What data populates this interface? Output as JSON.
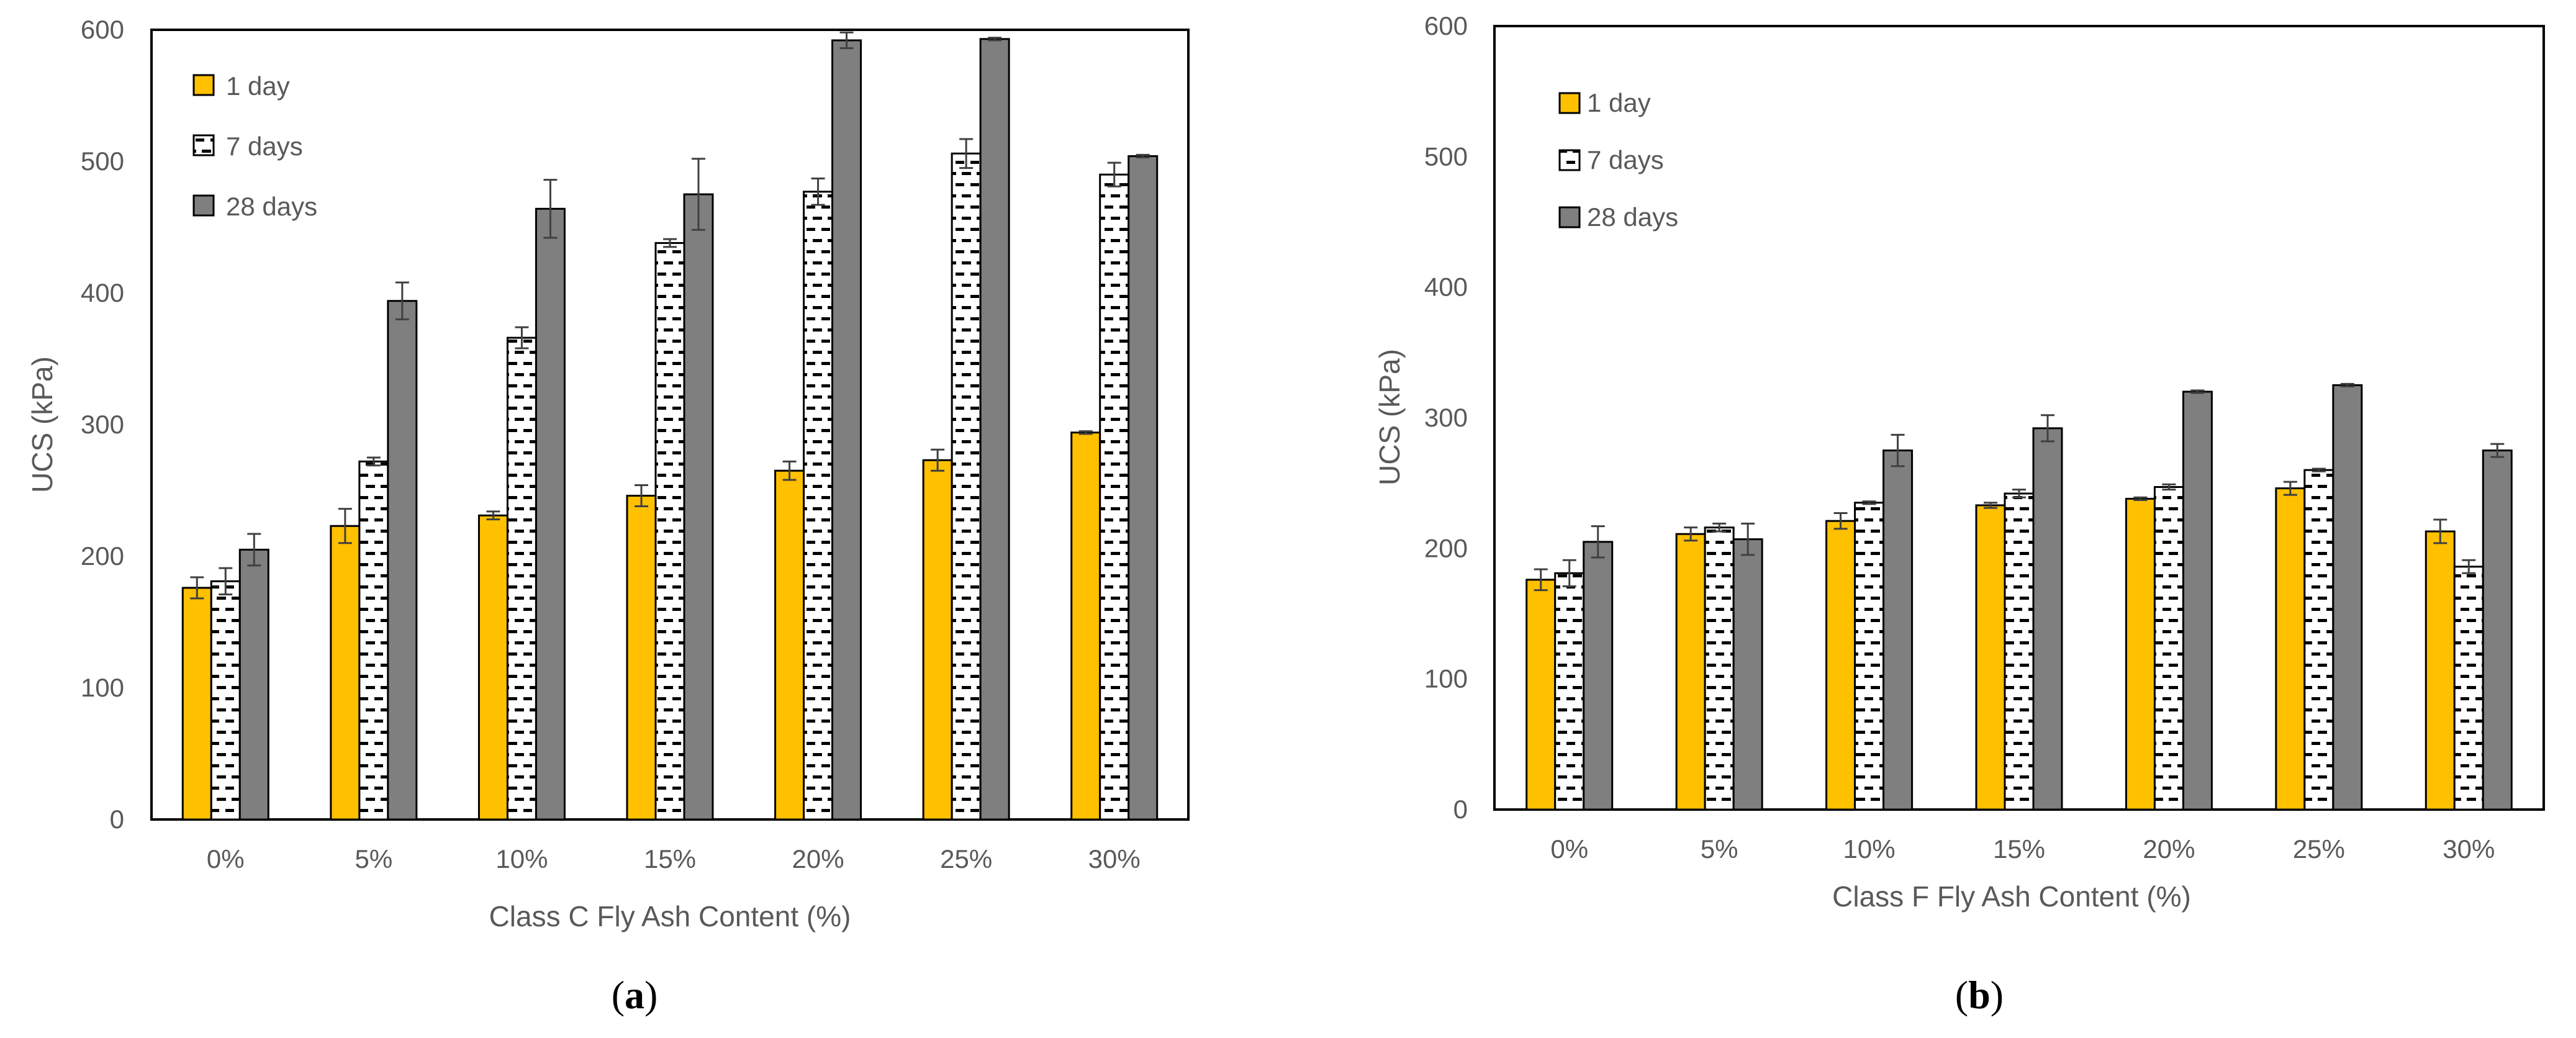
{
  "chart_data": [
    {
      "type": "bar",
      "panel_label": "a",
      "title": "",
      "xlabel": "Class C Fly Ash Content (%)",
      "ylabel": "UCS (kPa)",
      "ylim": [
        0,
        600
      ],
      "yticks": [
        0,
        100,
        200,
        300,
        400,
        500,
        600
      ],
      "grid": false,
      "legend_position": "top-left",
      "categories": [
        "0%",
        "5%",
        "10%",
        "15%",
        "20%",
        "25%",
        "30%"
      ],
      "series": [
        {
          "name": "1 day",
          "pattern": "solid-yellow",
          "values": [
            176,
            223,
            231,
            246,
            265,
            273,
            294
          ],
          "errors": [
            8,
            13,
            3,
            8,
            7,
            8,
            1
          ]
        },
        {
          "name": "7 days",
          "pattern": "dashed-white",
          "values": [
            181,
            272,
            366,
            438,
            477,
            506,
            490
          ],
          "errors": [
            10,
            3,
            8,
            3,
            10,
            11,
            9
          ]
        },
        {
          "name": "28 days",
          "pattern": "solid-gray",
          "values": [
            205,
            394,
            464,
            475,
            592,
            593,
            504
          ],
          "errors": [
            12,
            14,
            22,
            27,
            6,
            1,
            1
          ]
        }
      ]
    },
    {
      "type": "bar",
      "panel_label": "b",
      "title": "",
      "xlabel": "Class F Fly Ash Content (%)",
      "ylabel": "UCS (kPa)",
      "ylim": [
        0,
        600
      ],
      "yticks": [
        0,
        100,
        200,
        300,
        400,
        500,
        600
      ],
      "grid": false,
      "legend_position": "top-left",
      "categories": [
        "0%",
        "5%",
        "10%",
        "15%",
        "20%",
        "25%",
        "30%"
      ],
      "series": [
        {
          "name": "1 day",
          "pattern": "solid-yellow",
          "values": [
            176,
            211,
            221,
            233,
            238,
            246,
            213
          ],
          "errors": [
            8,
            5,
            6,
            2,
            1,
            5,
            9
          ]
        },
        {
          "name": "7 days",
          "pattern": "dashed-white",
          "values": [
            181,
            216,
            235,
            242,
            247,
            260,
            186
          ],
          "errors": [
            10,
            3,
            1,
            3,
            2,
            1,
            5
          ]
        },
        {
          "name": "28 days",
          "pattern": "solid-gray",
          "values": [
            205,
            207,
            275,
            292,
            320,
            325,
            275
          ],
          "errors": [
            12,
            12,
            12,
            10,
            1,
            1,
            5
          ]
        }
      ]
    }
  ],
  "colors": {
    "day1_fill": "#FFC000",
    "day7_fill": "#FFFFFF",
    "day28_fill": "#7F7F7F",
    "bar_stroke": "#000000",
    "error_bar": "#404040",
    "axis_text": "#595959",
    "frame": "#000000",
    "dash": "#000000"
  }
}
